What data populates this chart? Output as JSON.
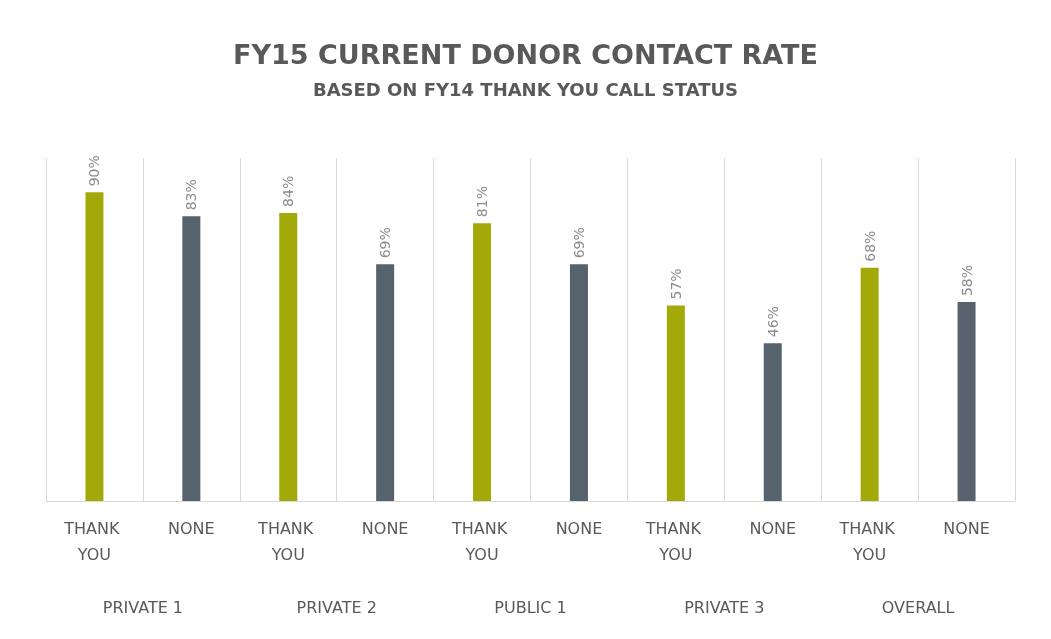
{
  "chart_data": {
    "type": "bar",
    "title": "FY15 CURRENT DONOR CONTACT RATE",
    "subtitle": "BASED ON FY14 THANK YOU CALL STATUS",
    "categories": [
      "PRIVATE 1",
      "PRIVATE 2",
      "PUBLIC 1",
      "PRIVATE 3",
      "OVERALL"
    ],
    "series": [
      {
        "name": "THANK YOU",
        "color": "#a4a90a",
        "values": [
          90,
          84,
          81,
          57,
          68
        ],
        "value_labels": [
          "90%",
          "84%",
          "81%",
          "57%",
          "68%"
        ]
      },
      {
        "name": "NONE",
        "color": "#56636d",
        "values": [
          83,
          69,
          69,
          46,
          58
        ],
        "value_labels": [
          "83%",
          "69%",
          "69%",
          "46%",
          "58%"
        ]
      }
    ],
    "grid": "x",
    "legend": false
  }
}
